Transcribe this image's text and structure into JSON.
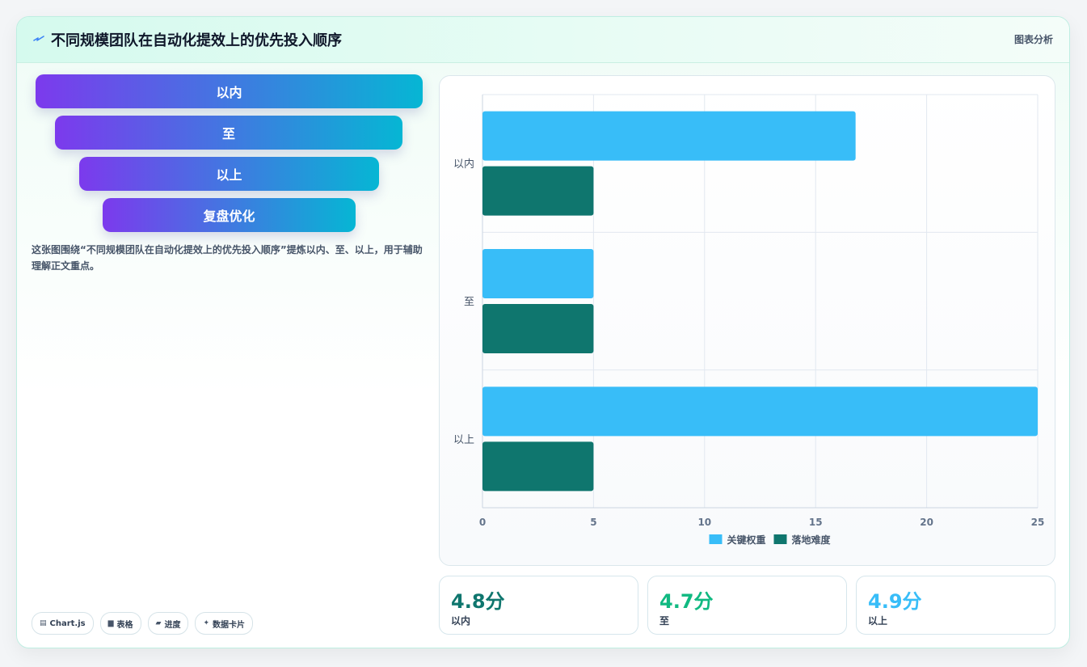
{
  "header": {
    "title": "不同规模团队在自动化提效上的优先投入顺序",
    "link": "图表分析",
    "icon": "sparkle-icon"
  },
  "funnel": {
    "items": [
      {
        "label": "以内"
      },
      {
        "label": "至"
      },
      {
        "label": "以上"
      },
      {
        "label": "复盘优化"
      }
    ]
  },
  "description": "这张图围绕“不同规模团队在自动化提效上的优先投入顺序”提炼以内、至、以上，用于辅助理解正文重点。",
  "tags": [
    {
      "icon": "chart-icon",
      "glyph": "▤",
      "label": "Chart.js"
    },
    {
      "icon": "table-icon",
      "glyph": "▆",
      "label": "表格"
    },
    {
      "icon": "progress-icon",
      "glyph": "▰",
      "label": "进度"
    },
    {
      "icon": "data-card-icon",
      "glyph": "✦",
      "label": "数据卡片"
    }
  ],
  "stats": [
    {
      "value": "4.8分",
      "label": "以内",
      "color": "#0f766e"
    },
    {
      "value": "4.7分",
      "label": "至",
      "color": "#10b981"
    },
    {
      "value": "4.9分",
      "label": "以上",
      "color": "#38bdf8"
    }
  ],
  "chart_data": {
    "type": "bar",
    "orientation": "horizontal",
    "categories": [
      "以内",
      "至",
      "以上"
    ],
    "series": [
      {
        "name": "关键权重",
        "values": [
          16.8,
          5,
          25
        ],
        "color": "#38bdf8"
      },
      {
        "name": "落地难度",
        "values": [
          5,
          5,
          5
        ],
        "color": "#0f766e"
      }
    ],
    "xlim": [
      0,
      25
    ],
    "xticks": [
      0,
      5,
      10,
      15,
      20,
      25
    ],
    "grid": true,
    "legend": "bottom"
  }
}
